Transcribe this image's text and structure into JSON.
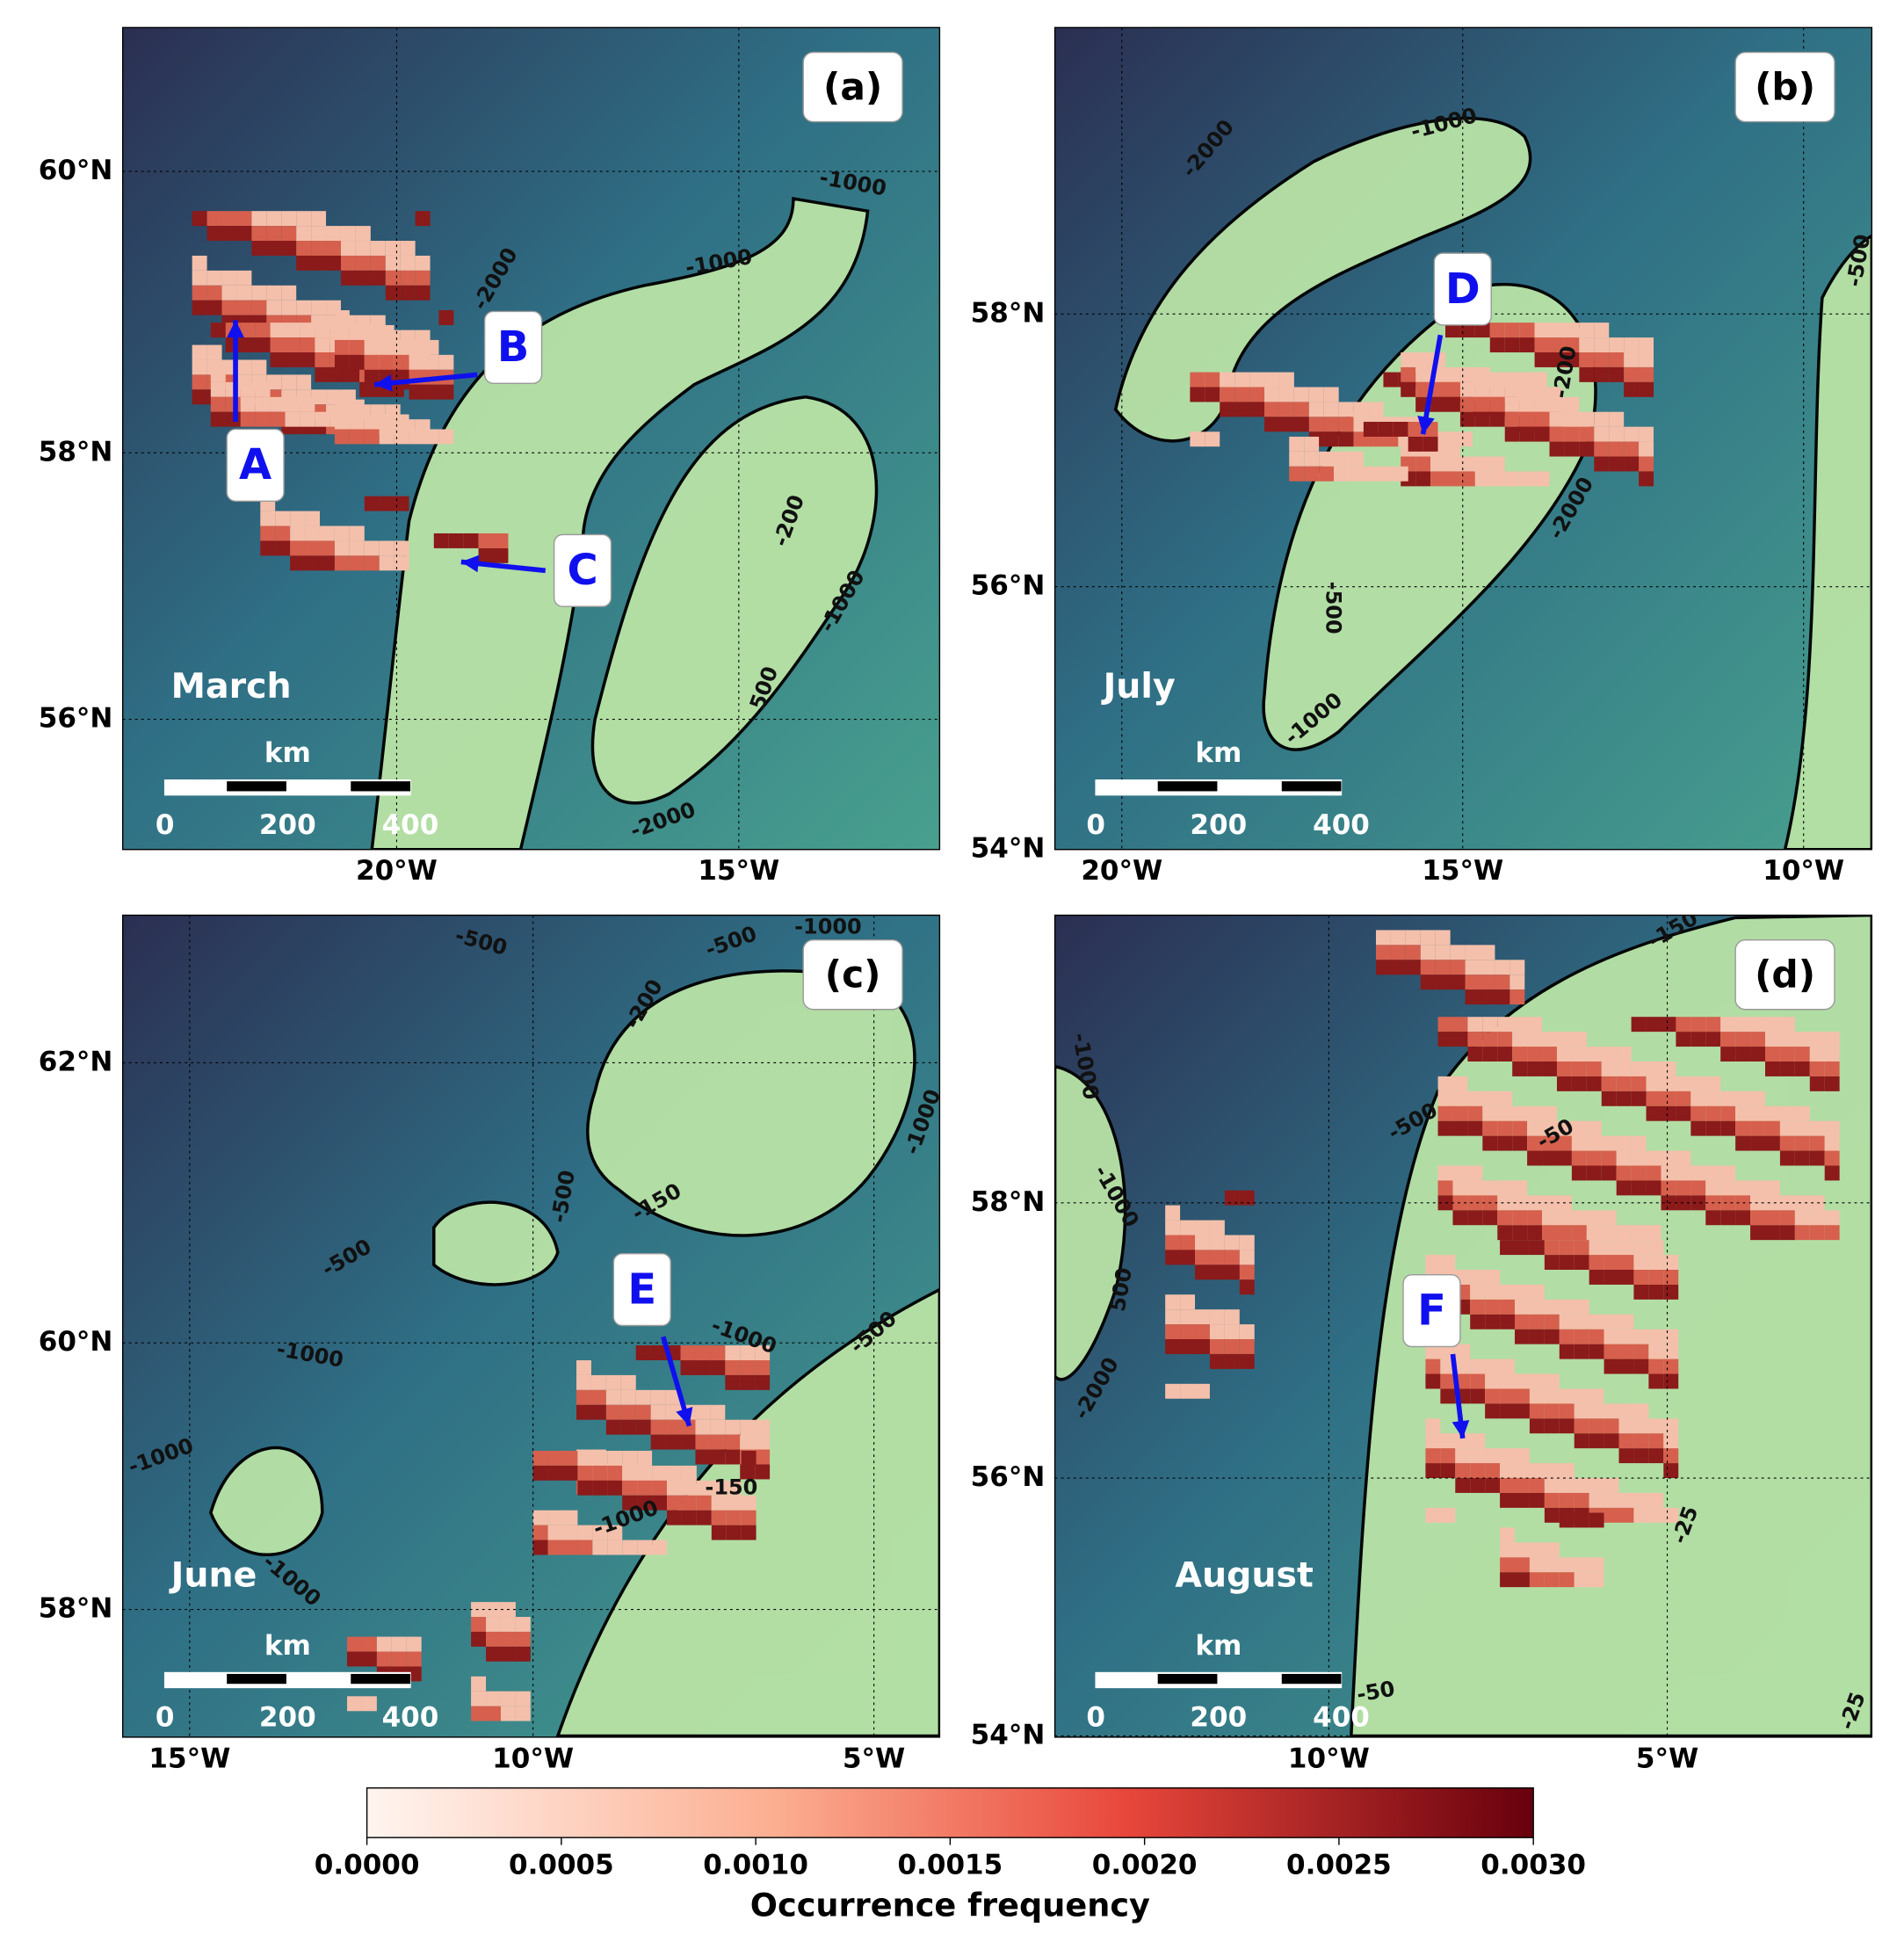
{
  "panels": [
    {
      "label": "(a)",
      "month": "March",
      "lat_ticks": [
        "60°N",
        "58°N",
        "56°N"
      ],
      "lon_ticks": [
        "20°W",
        "15°W"
      ],
      "scale": {
        "unit": "km",
        "labels": [
          "0",
          "200",
          "400"
        ]
      },
      "markers": [
        "A",
        "B",
        "C"
      ],
      "contour_labels": [
        "-2000",
        "-1000",
        "-1000",
        "-200",
        "-1000",
        "500",
        "-2000"
      ]
    },
    {
      "label": "(b)",
      "month": "July",
      "lat_ticks": [
        "58°N",
        "56°N",
        "54°N"
      ],
      "lon_ticks": [
        "20°W",
        "15°W",
        "10°W"
      ],
      "scale": {
        "unit": "km",
        "labels": [
          "0",
          "200",
          "400"
        ]
      },
      "markers": [
        "D"
      ],
      "contour_labels": [
        "-1000",
        "-2000",
        "-200",
        "-2000",
        "-500",
        "-1000",
        "-500"
      ]
    },
    {
      "label": "(c)",
      "month": "June",
      "lat_ticks": [
        "62°N",
        "60°N",
        "58°N"
      ],
      "lon_ticks": [
        "15°W",
        "10°W",
        "5°W"
      ],
      "scale": {
        "unit": "km",
        "labels": [
          "0",
          "200",
          "400"
        ]
      },
      "markers": [
        "E"
      ],
      "contour_labels": [
        "-500",
        "-500",
        "-1000",
        "-200",
        "-500",
        "-150",
        "-500",
        "-1000",
        "-1000",
        "-1000",
        "-1000",
        "-150",
        "-1000",
        "-500",
        "-1000"
      ]
    },
    {
      "label": "(d)",
      "month": "August",
      "lat_ticks": [
        "58°N",
        "56°N",
        "54°N"
      ],
      "lon_ticks": [
        "10°W",
        "5°W"
      ],
      "scale": {
        "unit": "km",
        "labels": [
          "0",
          "200",
          "400"
        ]
      },
      "markers": [
        "F"
      ],
      "contour_labels": [
        "-150",
        "-1000",
        "-500",
        "-1000",
        "500",
        "-2000",
        "-50",
        "-25",
        "-50",
        "-25"
      ]
    }
  ],
  "colorbar": {
    "label": "Occurrence frequency",
    "lim": [
      0,
      0.003
    ],
    "ticks": [
      {
        "value": 0,
        "label": "0.0000"
      },
      {
        "value": 0.0005,
        "label": "0.0005"
      },
      {
        "value": 0.001,
        "label": "0.0010"
      },
      {
        "value": 0.0015,
        "label": "0.0015"
      },
      {
        "value": 0.002,
        "label": "0.0020"
      },
      {
        "value": 0.0025,
        "label": "0.0025"
      },
      {
        "value": 0.003,
        "label": "0.0030"
      }
    ]
  }
}
